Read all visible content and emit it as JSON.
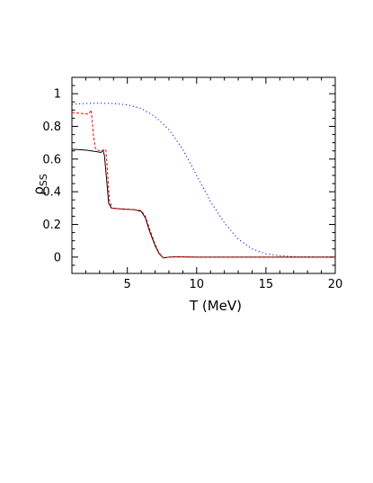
{
  "chart_data": {
    "type": "line",
    "title": "",
    "xlabel": "T (MeV)",
    "ylabel_main": "ρ",
    "ylabel_sub": "SS",
    "xlim": [
      1,
      20
    ],
    "ylim": [
      -0.1,
      1.1
    ],
    "xticks": [
      5,
      10,
      15,
      20
    ],
    "yticks": [
      0,
      0.2,
      0.4,
      0.6,
      0.8,
      1
    ],
    "ytick_labels": [
      "0",
      "0.2",
      "0.4",
      "0.6",
      "0.8",
      "1"
    ],
    "xtick_labels": [
      "5",
      "10",
      "15",
      "20"
    ],
    "grid": false,
    "series": [
      {
        "color": "#0000ff",
        "style": "dotted",
        "points": [
          [
            1,
            0.935
          ],
          [
            2,
            0.94
          ],
          [
            3,
            0.942
          ],
          [
            4,
            0.94
          ],
          [
            5,
            0.932
          ],
          [
            6,
            0.91
          ],
          [
            7,
            0.86
          ],
          [
            8,
            0.78
          ],
          [
            9,
            0.66
          ],
          [
            10,
            0.5
          ],
          [
            11,
            0.34
          ],
          [
            12,
            0.21
          ],
          [
            13,
            0.11
          ],
          [
            14,
            0.05
          ],
          [
            15,
            0.02
          ],
          [
            16,
            0.008
          ],
          [
            17,
            0.003
          ],
          [
            18,
            0.001
          ],
          [
            20,
            0
          ]
        ]
      },
      {
        "color": "#000000",
        "style": "solid",
        "points": [
          [
            1,
            0.66
          ],
          [
            2,
            0.655
          ],
          [
            2.8,
            0.645
          ],
          [
            3.1,
            0.64
          ],
          [
            3.25,
            0.655
          ],
          [
            3.35,
            0.62
          ],
          [
            3.5,
            0.48
          ],
          [
            3.65,
            0.33
          ],
          [
            3.85,
            0.3
          ],
          [
            4.5,
            0.295
          ],
          [
            5.5,
            0.29
          ],
          [
            6,
            0.28
          ],
          [
            6.3,
            0.24
          ],
          [
            6.6,
            0.16
          ],
          [
            7,
            0.07
          ],
          [
            7.3,
            0.02
          ],
          [
            7.6,
            -0.005
          ],
          [
            8,
            0
          ],
          [
            8.5,
            0.002
          ],
          [
            10,
            0
          ],
          [
            20,
            0
          ]
        ]
      },
      {
        "color": "#ff0000",
        "style": "dashed",
        "points": [
          [
            1,
            0.885
          ],
          [
            1.6,
            0.88
          ],
          [
            2.2,
            0.875
          ],
          [
            2.4,
            0.9
          ],
          [
            2.55,
            0.75
          ],
          [
            2.7,
            0.665
          ],
          [
            3,
            0.65
          ],
          [
            3.3,
            0.655
          ],
          [
            3.45,
            0.66
          ],
          [
            3.55,
            0.55
          ],
          [
            3.7,
            0.35
          ],
          [
            3.9,
            0.3
          ],
          [
            4.5,
            0.295
          ],
          [
            5.5,
            0.29
          ],
          [
            6,
            0.285
          ],
          [
            6.3,
            0.25
          ],
          [
            6.7,
            0.15
          ],
          [
            7,
            0.08
          ],
          [
            7.3,
            0.025
          ],
          [
            7.6,
            -0.005
          ],
          [
            8,
            0
          ],
          [
            8.5,
            0.002
          ],
          [
            10,
            0
          ],
          [
            20,
            0
          ]
        ]
      }
    ]
  }
}
